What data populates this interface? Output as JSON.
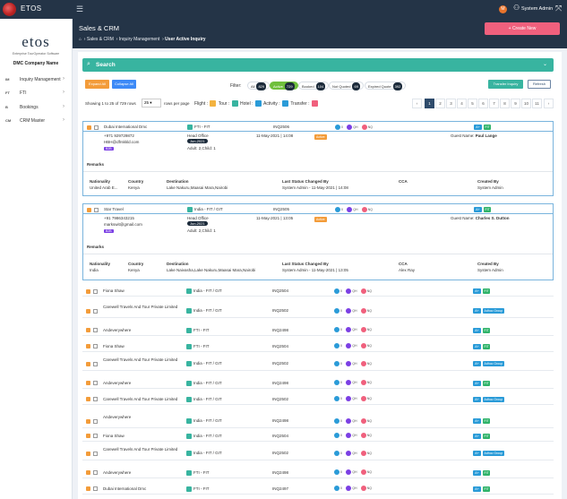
{
  "app": {
    "brand": "ETOS",
    "user_badge": "M",
    "user_name": "System Admin"
  },
  "header": {
    "title": "Sales & CRM",
    "breadcrumb": [
      "Sales & CRM",
      "Inquiry Management",
      "User Active Inquiry"
    ],
    "create_button": "+ Create New"
  },
  "sidebar": {
    "logo": "etos",
    "tagline": "Enterprise TourOperator Software",
    "company": "DMC Company Name",
    "items": [
      {
        "abbr": "IM",
        "label": "Inquiry Management"
      },
      {
        "abbr": "FT",
        "label": "FTI"
      },
      {
        "abbr": "B",
        "label": "Bookings"
      },
      {
        "abbr": "CM",
        "label": "CRM Master"
      }
    ]
  },
  "search": {
    "label": "Search"
  },
  "toolbar": {
    "expand_all": "Expand All",
    "collapse_all": "Collapse All",
    "filter_label": "Filter:",
    "filters": [
      {
        "label": "All",
        "count": "829"
      },
      {
        "label": "Active",
        "count": "729"
      },
      {
        "label": "Booked",
        "count": "104"
      },
      {
        "label": "Not Quoted",
        "count": "69"
      },
      {
        "label": "Expired Quote",
        "count": "392"
      }
    ],
    "transfer_inquiry": "Transfer Inquiry",
    "refresh": "Refresh"
  },
  "list_meta": {
    "showing": "Showing 1 to 25 of 729 rows",
    "rows_per_page": "25",
    "rows_per_page_label": "rows per page",
    "flight": "Flight :",
    "tour": "Tour :",
    "hotel": "Hotel :",
    "activity": "Activity :",
    "transfer": "Transfer :"
  },
  "pagination": [
    "‹",
    "1",
    "2",
    "3",
    "4",
    "5",
    "6",
    "7",
    "8",
    "9",
    "10",
    "11",
    "›"
  ],
  "status_labels": {
    "o": "0",
    "qh": "QH",
    "nq": "NQ"
  },
  "rows": [
    {
      "customer": "Dubai International Dmc",
      "tour": "FTI - FIT",
      "inq": "INQ2506",
      "action": "FIT"
    },
    {
      "customer": "Star Travel",
      "tour": "India - FIT / GIT",
      "inq": "INQ2505",
      "action": "FIT"
    },
    {
      "customer": "Fiona Shaw",
      "tour": "India - FIT / GIT",
      "inq": "INQ2504",
      "action": "FIT"
    },
    {
      "customer": "Carewell Travels And Tour Private Limited",
      "tour": "India - FIT / GIT",
      "inq": "INQ2502",
      "action": "Adhoc Group"
    },
    {
      "customer": "Andeverywhere",
      "tour": "FTI - FIT",
      "inq": "INQ2498",
      "action": "FIT"
    },
    {
      "customer": "Fiona Shaw",
      "tour": "FTI - FIT",
      "inq": "INQ2504",
      "action": "FIT"
    },
    {
      "customer": "Carewell Travels And Tour Private Limited",
      "tour": "India - FIT / GIT",
      "inq": "INQ2502",
      "action": "Adhoc Group"
    },
    {
      "customer": "Andeverywhere",
      "tour": "India - FIT / GIT",
      "inq": "INQ2498",
      "action": "FIT"
    },
    {
      "customer": "Carewell Travels And Tour Private Limited",
      "tour": "India - FIT / GIT",
      "inq": "INQ2502",
      "action": "Adhoc Group"
    },
    {
      "customer": "Andeverywhere",
      "tour": "India - FIT / GIT",
      "inq": "INQ2498",
      "action": "FIT"
    },
    {
      "customer": "Fiona Shaw",
      "tour": "India - FIT / GIT",
      "inq": "INQ2504",
      "action": "FIT"
    },
    {
      "customer": "Carewell Travels And Tour Private Limited",
      "tour": "India - FIT / GIT",
      "inq": "INQ2502",
      "action": "Adhoc Group"
    },
    {
      "customer": "Andeverywhere",
      "tour": "FTI - FIT",
      "inq": "INQ2498",
      "action": "FIT"
    },
    {
      "customer": "Dubai International Dmc",
      "tour": "FTI - FIT",
      "inq": "INQ2497",
      "action": "FIT"
    }
  ],
  "details": [
    {
      "phone": "+971 929729872",
      "email": "HBH@dfrskkld.com",
      "b2b": "B2B",
      "office": "Head Office",
      "date_chip": "Jun-2021",
      "date": "11-May-2021 | 14:08",
      "status": "Active",
      "pax": "Adult: 2,Child: 1",
      "guest_label": "Guest Name:",
      "guest": "Paul Lange",
      "remarks": "Remarks",
      "headers": [
        "Nationality",
        "Country",
        "Destination",
        "Last Status Changed By",
        "CCA",
        "Created By"
      ],
      "values": [
        "United Arab E...",
        "Kenya",
        "Lake Nakuru,Maasai Mara,Nairobi",
        "System Admin - 11-May-2021 | 14:08",
        "",
        "System Admin"
      ]
    },
    {
      "phone": "+91 7986343215",
      "email": "markswit@gmail.com",
      "b2b": "B2B",
      "office": "Head Office",
      "date_chip": "Jun-2021",
      "date": "11-May-2021 | 13:05",
      "status": "Active",
      "pax": "Adult: 2,Child: 1",
      "guest_label": "Guest Name:",
      "guest": "Charles S. Dutton",
      "remarks": "Remarks",
      "headers": [
        "Nationality",
        "Country",
        "Destination",
        "Last Status Changed By",
        "CCA",
        "Created By"
      ],
      "values": [
        "India",
        "Kenya",
        "Lake Naivasha,Lake Nakuru,Maasai Mara,Nairobi",
        "System Admin - 11-May-2021 | 13:05",
        "Alex Ray",
        "System Admin"
      ]
    }
  ],
  "colors": {
    "navy": "#243447",
    "teal": "#38b4a0",
    "orange": "#f39c3a",
    "pink": "#f0607d",
    "blue": "#2a9bd8",
    "green": "#2fb36a"
  }
}
